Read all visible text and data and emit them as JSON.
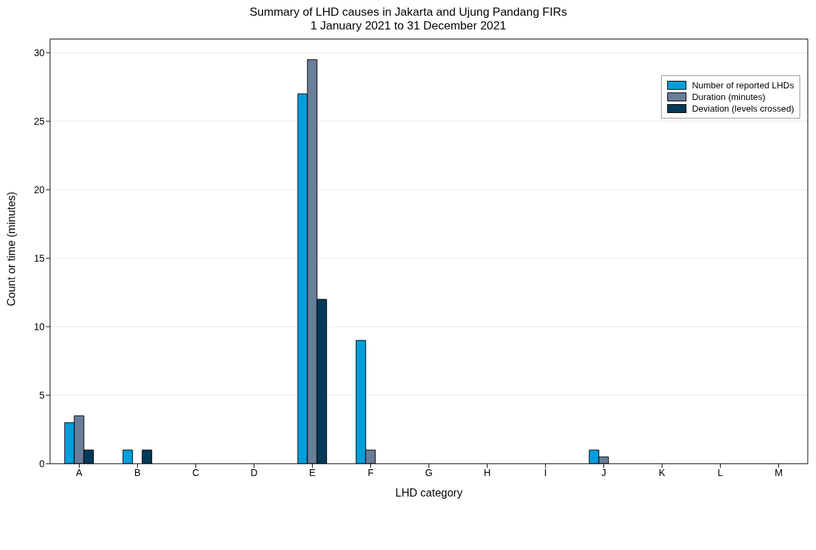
{
  "chart_data": {
    "type": "bar",
    "title": "Summary of LHD causes in Jakarta and Ujung Pandang FIRs",
    "subtitle": "1 January 2021 to 31 December 2021",
    "xlabel": "LHD category",
    "ylabel": "Count or time (minutes)",
    "categories": [
      "A",
      "B",
      "C",
      "D",
      "E",
      "F",
      "G",
      "H",
      "I",
      "J",
      "K",
      "L",
      "M"
    ],
    "series": [
      {
        "name": "Number of reported LHDs",
        "color": "#009fdb",
        "values": [
          3,
          1,
          0,
          0,
          27,
          9,
          0,
          0,
          0,
          1,
          0,
          0,
          0
        ]
      },
      {
        "name": "Duration (minutes)",
        "color": "#6a7d99",
        "values": [
          3.5,
          0,
          0,
          0,
          29.5,
          1,
          0,
          0,
          0,
          0.5,
          0,
          0,
          0
        ]
      },
      {
        "name": "Deviation (levels crossed)",
        "color": "#023a5a",
        "values": [
          1,
          1,
          0,
          0,
          12,
          0,
          0,
          0,
          0,
          0,
          0,
          0,
          0
        ]
      }
    ],
    "ylim": [
      0,
      31
    ],
    "yticks": [
      0,
      5,
      10,
      15,
      20,
      25,
      30
    ],
    "grid": "y",
    "legend": "top right"
  }
}
